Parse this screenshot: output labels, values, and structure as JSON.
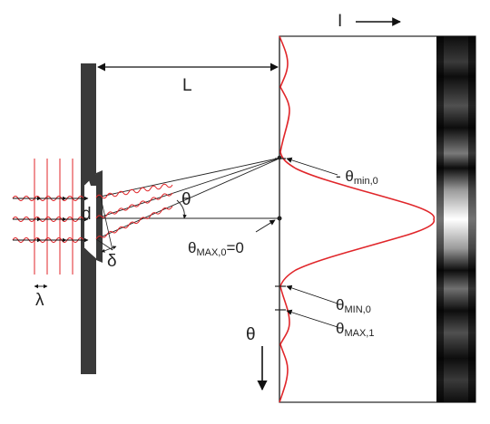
{
  "labels": {
    "intensity": "I",
    "distance": "L",
    "angle": "θ",
    "slit_width": "d",
    "path_diff": "δ",
    "wavelength": "λ",
    "theta_axis": "θ",
    "min_neg_prefix": "- θ",
    "min_neg_sub": "min,0",
    "max0_theta": "θ",
    "max0_sub": "MAX,0",
    "max0_suffix": "=0",
    "min0_theta": "θ",
    "min0_sub": "MIN,0",
    "max1_theta": "θ",
    "max1_sub": "MAX,1"
  },
  "colors": {
    "wave": "#e0262a",
    "barrier": "#3a3a3a",
    "line": "#222222",
    "fringe_dark": "#111111",
    "fringe_light": "#ffffff"
  }
}
